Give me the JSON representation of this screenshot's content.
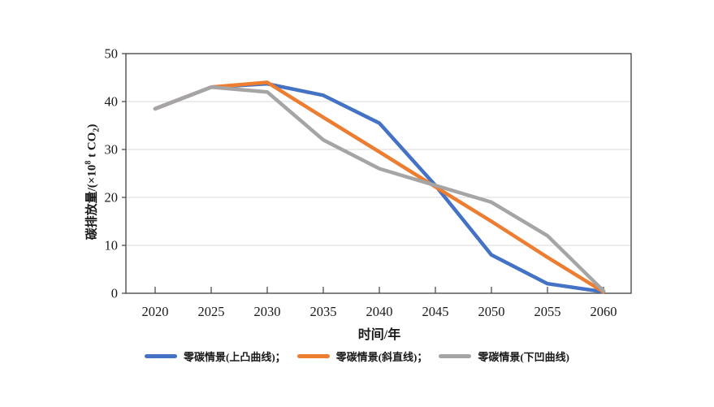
{
  "chart_data": {
    "type": "line",
    "title": "",
    "xlabel": "时间/年",
    "ylabel": "碳排放量/(×10⁸ t CO₂)",
    "ylabel_parts": {
      "prefix": "碳排放量/(×10",
      "sup": "8",
      "mid": " t CO",
      "sub": "2",
      "suffix": ")"
    },
    "x": [
      2020,
      2025,
      2030,
      2035,
      2040,
      2045,
      2050,
      2055,
      2060
    ],
    "x_tick_labels": [
      "2020",
      "2025",
      "2030",
      "2035",
      "2040",
      "2045",
      "2050",
      "2055",
      "2060"
    ],
    "y_ticks": [
      0,
      10,
      20,
      30,
      40,
      50
    ],
    "xlim": [
      2020,
      2060
    ],
    "ylim": [
      0,
      50
    ],
    "grid": "horizontal-light",
    "legend_position": "bottom",
    "series": [
      {
        "name": "零碳情景(上凸曲线)",
        "legend_label": "零碳情景(上凸曲线)；",
        "color": "#4472C4",
        "values": [
          38.5,
          43,
          43.7,
          41.3,
          35.5,
          22.5,
          8,
          2,
          0.3
        ]
      },
      {
        "name": "零碳情景(斜直线)",
        "legend_label": "零碳情景(斜直线)；",
        "color": "#ED7D31",
        "values": [
          38.5,
          43,
          44,
          36.7,
          29.5,
          22.2,
          15,
          7.5,
          0.3
        ]
      },
      {
        "name": "零碳情景(下凹曲线)",
        "legend_label": "零碳情景(下凹曲线)",
        "color": "#A5A5A5",
        "values": [
          38.5,
          43,
          42,
          32,
          26,
          22.5,
          19,
          12,
          0.5
        ]
      }
    ],
    "colors": {
      "grid": "#d9d9d9",
      "axis": "#404040",
      "text": "#1a1a1a",
      "background": "#ffffff"
    }
  }
}
